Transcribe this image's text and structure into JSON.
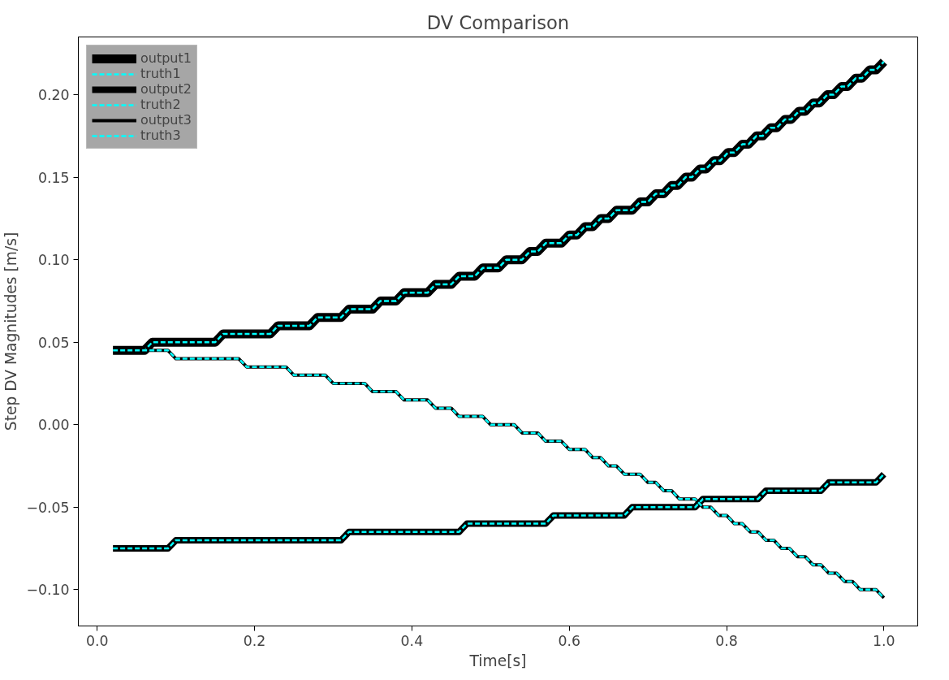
{
  "chart_data": {
    "type": "line",
    "title": "DV Comparison",
    "xlabel": "Time[s]",
    "ylabel": "Step DV Magnitudes [m/s]",
    "xlim": [
      -0.024,
      1.043
    ],
    "ylim": [
      -0.122,
      0.235
    ],
    "xticks": [
      {
        "value": 0,
        "label": "0.0"
      },
      0.2,
      0.4,
      0.6,
      0.8,
      {
        "value": 1,
        "label": "1.0"
      }
    ],
    "yticks": [
      {
        "value": -0.1,
        "label": "−0.10"
      },
      {
        "value": -0.05,
        "label": "−0.05"
      },
      {
        "value": 0,
        "label": "0.00"
      },
      0.05,
      {
        "value": 0.1,
        "label": "0.10"
      },
      0.15,
      {
        "value": 0.2,
        "label": "0.20"
      }
    ],
    "grid": false,
    "legend": "top left",
    "series": [
      {
        "name": "output1",
        "color": "#000000",
        "line_style": "solid",
        "x": [
          0.02,
          0.06,
          0.07,
          0.15,
          0.16,
          0.22,
          0.23,
          0.27,
          0.28,
          0.31,
          0.32,
          0.35,
          0.36,
          0.38,
          0.39,
          0.42,
          0.43,
          0.45,
          0.46,
          0.48,
          0.49,
          0.51,
          0.52,
          0.54,
          0.55,
          0.56,
          0.57,
          0.59,
          0.6,
          0.61,
          0.62,
          0.63,
          0.64,
          0.65,
          0.66,
          0.68,
          0.69,
          0.7,
          0.71,
          0.72,
          0.73,
          0.738,
          0.748,
          0.756,
          0.766,
          0.774,
          0.784,
          0.792,
          0.802,
          0.81,
          0.82,
          0.828,
          0.838,
          0.846,
          0.856,
          0.864,
          0.874,
          0.882,
          0.892,
          0.9,
          0.91,
          0.918,
          0.928,
          0.936,
          0.946,
          0.954,
          0.964,
          0.972,
          0.982,
          0.99,
          1.0
        ],
        "values": [
          0.045,
          0.045,
          0.05,
          0.05,
          0.055,
          0.055,
          0.06,
          0.06,
          0.065,
          0.065,
          0.07,
          0.07,
          0.075,
          0.075,
          0.08,
          0.08,
          0.085,
          0.085,
          0.09,
          0.09,
          0.095,
          0.095,
          0.1,
          0.1,
          0.105,
          0.105,
          0.11,
          0.11,
          0.115,
          0.115,
          0.12,
          0.12,
          0.125,
          0.125,
          0.13,
          0.13,
          0.135,
          0.135,
          0.14,
          0.14,
          0.145,
          0.145,
          0.15,
          0.15,
          0.155,
          0.155,
          0.16,
          0.16,
          0.165,
          0.165,
          0.17,
          0.17,
          0.175,
          0.175,
          0.18,
          0.18,
          0.185,
          0.185,
          0.19,
          0.19,
          0.195,
          0.195,
          0.2,
          0.2,
          0.205,
          0.205,
          0.21,
          0.21,
          0.215,
          0.215,
          0.22
        ]
      },
      {
        "name": "truth1",
        "color": "#00ffff",
        "line_style": "dashed",
        "x": [
          0.02,
          0.06,
          0.07,
          0.15,
          0.16,
          0.22,
          0.23,
          0.27,
          0.28,
          0.31,
          0.32,
          0.35,
          0.36,
          0.38,
          0.39,
          0.42,
          0.43,
          0.45,
          0.46,
          0.48,
          0.49,
          0.51,
          0.52,
          0.54,
          0.55,
          0.56,
          0.57,
          0.59,
          0.6,
          0.61,
          0.62,
          0.63,
          0.64,
          0.65,
          0.66,
          0.68,
          0.69,
          0.7,
          0.71,
          0.72,
          0.73,
          0.738,
          0.748,
          0.756,
          0.766,
          0.774,
          0.784,
          0.792,
          0.802,
          0.81,
          0.82,
          0.828,
          0.838,
          0.846,
          0.856,
          0.864,
          0.874,
          0.882,
          0.892,
          0.9,
          0.91,
          0.918,
          0.928,
          0.936,
          0.946,
          0.954,
          0.964,
          0.972,
          0.982,
          0.99,
          1.0
        ],
        "values": [
          0.045,
          0.045,
          0.05,
          0.05,
          0.055,
          0.055,
          0.06,
          0.06,
          0.065,
          0.065,
          0.07,
          0.07,
          0.075,
          0.075,
          0.08,
          0.08,
          0.085,
          0.085,
          0.09,
          0.09,
          0.095,
          0.095,
          0.1,
          0.1,
          0.105,
          0.105,
          0.11,
          0.11,
          0.115,
          0.115,
          0.12,
          0.12,
          0.125,
          0.125,
          0.13,
          0.13,
          0.135,
          0.135,
          0.14,
          0.14,
          0.145,
          0.145,
          0.15,
          0.15,
          0.155,
          0.155,
          0.16,
          0.16,
          0.165,
          0.165,
          0.17,
          0.17,
          0.175,
          0.175,
          0.18,
          0.18,
          0.185,
          0.185,
          0.19,
          0.19,
          0.195,
          0.195,
          0.2,
          0.2,
          0.205,
          0.205,
          0.21,
          0.21,
          0.215,
          0.215,
          0.22
        ]
      },
      {
        "name": "output2",
        "color": "#000000",
        "line_style": "solid",
        "x": [
          0.02,
          0.09,
          0.1,
          0.31,
          0.32,
          0.46,
          0.47,
          0.57,
          0.58,
          0.67,
          0.68,
          0.76,
          0.77,
          0.84,
          0.85,
          0.92,
          0.93,
          0.99,
          1.0
        ],
        "values": [
          -0.075,
          -0.075,
          -0.07,
          -0.07,
          -0.065,
          -0.065,
          -0.06,
          -0.06,
          -0.055,
          -0.055,
          -0.05,
          -0.05,
          -0.045,
          -0.045,
          -0.04,
          -0.04,
          -0.035,
          -0.035,
          -0.03
        ]
      },
      {
        "name": "truth2",
        "color": "#00ffff",
        "line_style": "dashed",
        "x": [
          0.02,
          0.09,
          0.1,
          0.31,
          0.32,
          0.46,
          0.47,
          0.57,
          0.58,
          0.67,
          0.68,
          0.76,
          0.77,
          0.84,
          0.85,
          0.92,
          0.93,
          0.99,
          1.0
        ],
        "values": [
          -0.075,
          -0.075,
          -0.07,
          -0.07,
          -0.065,
          -0.065,
          -0.06,
          -0.06,
          -0.055,
          -0.055,
          -0.05,
          -0.05,
          -0.045,
          -0.045,
          -0.04,
          -0.04,
          -0.035,
          -0.035,
          -0.03
        ]
      },
      {
        "name": "output3",
        "color": "#000000",
        "line_style": "solid",
        "x": [
          0.02,
          0.09,
          0.1,
          0.18,
          0.19,
          0.24,
          0.25,
          0.29,
          0.3,
          0.34,
          0.35,
          0.38,
          0.39,
          0.42,
          0.43,
          0.45,
          0.46,
          0.49,
          0.5,
          0.53,
          0.54,
          0.56,
          0.57,
          0.59,
          0.6,
          0.62,
          0.63,
          0.64,
          0.65,
          0.66,
          0.67,
          0.69,
          0.7,
          0.71,
          0.72,
          0.73,
          0.74,
          0.76,
          0.77,
          0.78,
          0.79,
          0.8,
          0.81,
          0.82,
          0.83,
          0.84,
          0.85,
          0.86,
          0.87,
          0.88,
          0.89,
          0.9,
          0.91,
          0.92,
          0.93,
          0.94,
          0.95,
          0.96,
          0.97,
          0.99,
          1.0
        ],
        "values": [
          0.045,
          0.045,
          0.04,
          0.04,
          0.035,
          0.035,
          0.03,
          0.03,
          0.025,
          0.025,
          0.02,
          0.02,
          0.015,
          0.015,
          0.01,
          0.01,
          0.005,
          0.005,
          0.0,
          0.0,
          -0.005,
          -0.005,
          -0.01,
          -0.01,
          -0.015,
          -0.015,
          -0.02,
          -0.02,
          -0.025,
          -0.025,
          -0.03,
          -0.03,
          -0.035,
          -0.035,
          -0.04,
          -0.04,
          -0.045,
          -0.045,
          -0.05,
          -0.05,
          -0.055,
          -0.055,
          -0.06,
          -0.06,
          -0.065,
          -0.065,
          -0.07,
          -0.07,
          -0.075,
          -0.075,
          -0.08,
          -0.08,
          -0.085,
          -0.085,
          -0.09,
          -0.09,
          -0.095,
          -0.095,
          -0.1,
          -0.1,
          -0.105
        ]
      },
      {
        "name": "truth3",
        "color": "#00ffff",
        "line_style": "dashed",
        "x": [
          0.02,
          0.09,
          0.1,
          0.18,
          0.19,
          0.24,
          0.25,
          0.29,
          0.3,
          0.34,
          0.35,
          0.38,
          0.39,
          0.42,
          0.43,
          0.45,
          0.46,
          0.49,
          0.5,
          0.53,
          0.54,
          0.56,
          0.57,
          0.59,
          0.6,
          0.62,
          0.63,
          0.64,
          0.65,
          0.66,
          0.67,
          0.69,
          0.7,
          0.71,
          0.72,
          0.73,
          0.74,
          0.76,
          0.77,
          0.78,
          0.79,
          0.8,
          0.81,
          0.82,
          0.83,
          0.84,
          0.85,
          0.86,
          0.87,
          0.88,
          0.89,
          0.9,
          0.91,
          0.92,
          0.93,
          0.94,
          0.95,
          0.96,
          0.97,
          0.99,
          1.0
        ],
        "values": [
          0.045,
          0.045,
          0.04,
          0.04,
          0.035,
          0.035,
          0.03,
          0.03,
          0.025,
          0.025,
          0.02,
          0.02,
          0.015,
          0.015,
          0.01,
          0.01,
          0.005,
          0.005,
          0.0,
          0.0,
          -0.005,
          -0.005,
          -0.01,
          -0.01,
          -0.015,
          -0.015,
          -0.02,
          -0.02,
          -0.025,
          -0.025,
          -0.03,
          -0.03,
          -0.035,
          -0.035,
          -0.04,
          -0.04,
          -0.045,
          -0.045,
          -0.05,
          -0.05,
          -0.055,
          -0.055,
          -0.06,
          -0.06,
          -0.065,
          -0.065,
          -0.07,
          -0.07,
          -0.075,
          -0.075,
          -0.08,
          -0.08,
          -0.085,
          -0.085,
          -0.09,
          -0.09,
          -0.095,
          -0.095,
          -0.1,
          -0.1,
          -0.105
        ]
      }
    ]
  }
}
